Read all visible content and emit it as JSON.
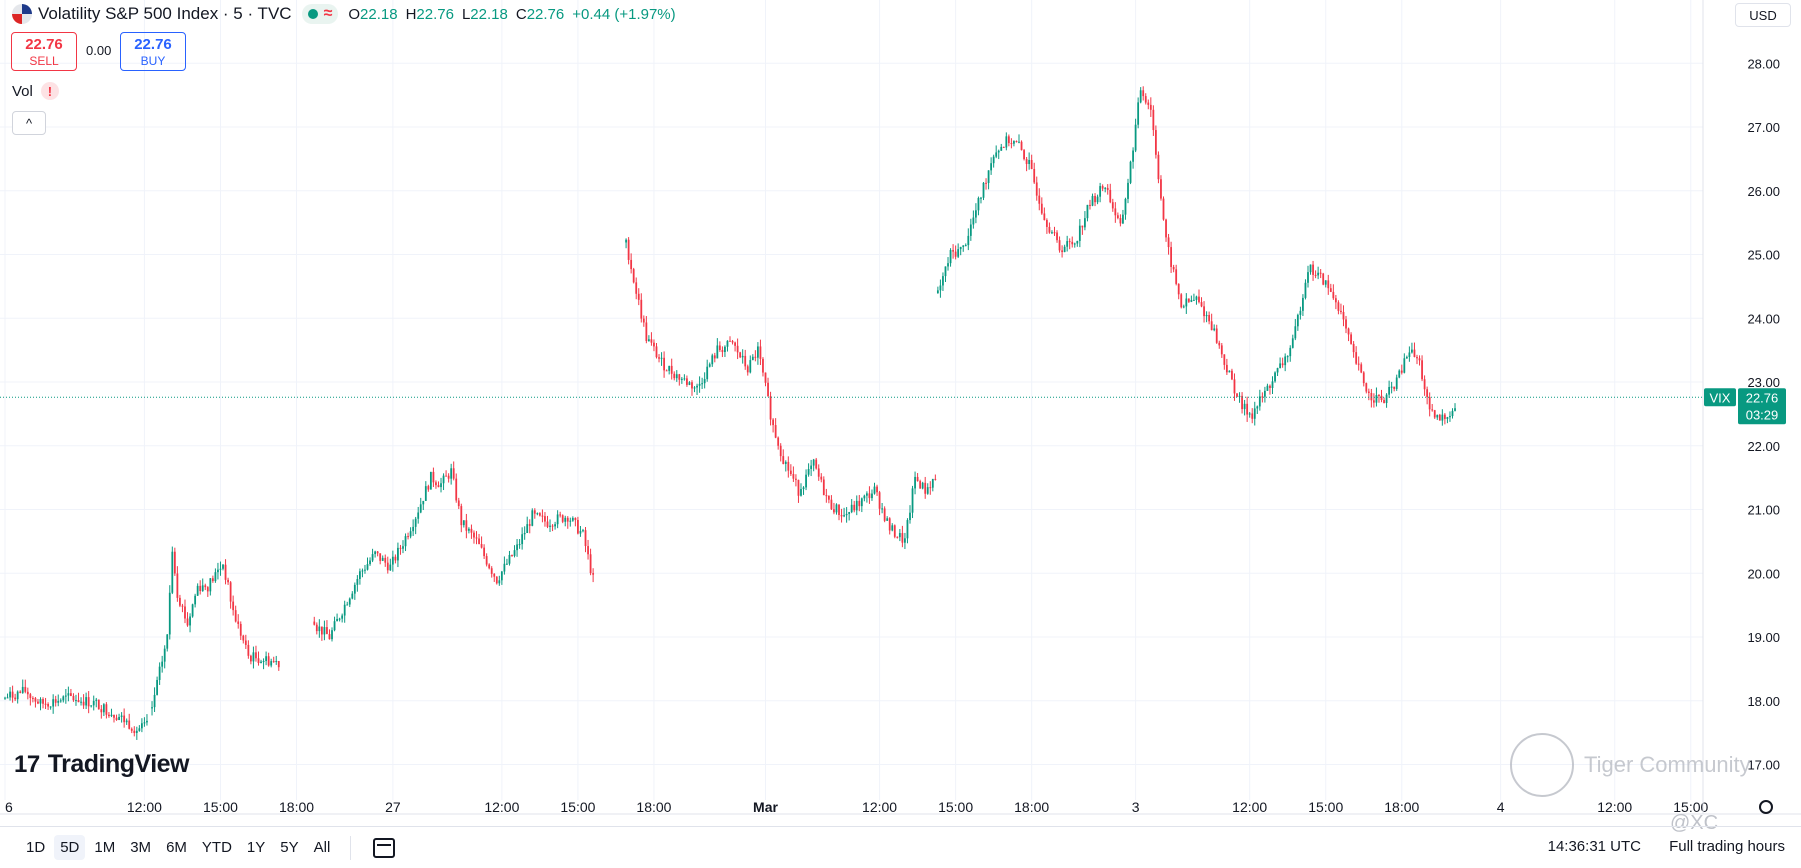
{
  "header": {
    "title": "Volatility S&P 500 Index · 5 · TVC",
    "ohlc": [
      {
        "label": "O",
        "value": "22.18"
      },
      {
        "label": "H",
        "value": "22.76"
      },
      {
        "label": "L",
        "value": "22.18"
      },
      {
        "label": "C",
        "value": "22.76"
      }
    ],
    "change": "+0.44 (+1.97%)",
    "currency": "USD"
  },
  "trade": {
    "sell_price": "22.76",
    "sell_label": "SELL",
    "spread": "0.00",
    "buy_price": "22.76",
    "buy_label": "BUY"
  },
  "indicators": {
    "vol_label": "Vol",
    "warn": "!",
    "collapse": "^"
  },
  "logo": {
    "text": "TradingView",
    "mark": "17"
  },
  "bottom": {
    "ranges": [
      "1D",
      "5D",
      "1M",
      "3M",
      "6M",
      "YTD",
      "1Y",
      "5Y",
      "All"
    ],
    "active_range": "5D",
    "time": "14:36:31 UTC",
    "session": "Full trading hours"
  },
  "watermark": {
    "text": "Tiger Community",
    "handle": "@XC"
  },
  "colors": {
    "up": "#089981",
    "down": "#f23645",
    "grid": "#f0f3fa",
    "text": "#131722"
  },
  "chart_data": {
    "type": "candlestick",
    "symbol": "VIX",
    "interval": "5",
    "ylim": [
      16.6,
      28.6
    ],
    "yticks": [
      "17.00",
      "18.00",
      "19.00",
      "20.00",
      "21.00",
      "22.00",
      "23.00",
      "24.00",
      "25.00",
      "26.00",
      "27.00",
      "28.00"
    ],
    "xticks": [
      "6",
      "12:00",
      "15:00",
      "18:00",
      "27",
      "12:00",
      "15:00",
      "18:00",
      "Mar",
      "12:00",
      "15:00",
      "18:00",
      "3",
      "12:00",
      "15:00",
      "18:00",
      "4",
      "12:00",
      "15:00"
    ],
    "x_tick_index": [
      0,
      55,
      85,
      115,
      153,
      196,
      226,
      256,
      300,
      345,
      375,
      405,
      446,
      491,
      521,
      551,
      590,
      635,
      665
    ],
    "last_price": {
      "symbol": "VIX",
      "price": "22.76",
      "countdown": "03:29",
      "value": 22.76
    },
    "sessions": [
      {
        "start": 0,
        "price_path": [
          [
            0,
            18.05
          ],
          [
            8,
            18.15
          ],
          [
            14,
            17.95
          ],
          [
            26,
            18.05
          ],
          [
            36,
            17.95
          ],
          [
            45,
            17.75
          ],
          [
            52,
            17.55
          ],
          [
            56,
            17.6
          ]
        ]
      },
      {
        "start": 58,
        "price_path": [
          [
            0,
            17.9
          ],
          [
            6,
            19.0
          ],
          [
            8,
            20.4
          ],
          [
            10,
            19.7
          ],
          [
            14,
            19.2
          ],
          [
            18,
            19.8
          ],
          [
            22,
            19.8
          ],
          [
            28,
            20.15
          ],
          [
            32,
            19.4
          ],
          [
            38,
            18.7
          ],
          [
            44,
            18.65
          ],
          [
            50,
            18.6
          ]
        ]
      },
      {
        "start": 122,
        "price_path": [
          [
            0,
            19.2
          ],
          [
            6,
            19.0
          ],
          [
            12,
            19.5
          ],
          [
            18,
            20.0
          ],
          [
            24,
            20.3
          ],
          [
            30,
            20.1
          ],
          [
            34,
            20.4
          ],
          [
            40,
            20.9
          ],
          [
            46,
            21.5
          ],
          [
            50,
            21.4
          ],
          [
            54,
            21.6
          ],
          [
            58,
            20.8
          ],
          [
            64,
            20.5
          ],
          [
            72,
            19.9
          ],
          [
            80,
            20.4
          ],
          [
            86,
            20.9
          ],
          [
            92,
            20.8
          ],
          [
            100,
            20.9
          ],
          [
            106,
            20.6
          ],
          [
            110,
            19.9
          ]
        ]
      },
      {
        "start": 245,
        "price_path": [
          [
            0,
            25.2
          ],
          [
            3,
            24.6
          ],
          [
            8,
            23.7
          ],
          [
            14,
            23.3
          ],
          [
            20,
            23.1
          ],
          [
            28,
            22.9
          ],
          [
            36,
            23.5
          ],
          [
            42,
            23.6
          ],
          [
            48,
            23.2
          ],
          [
            52,
            23.5
          ],
          [
            58,
            22.3
          ],
          [
            62,
            21.8
          ],
          [
            68,
            21.3
          ],
          [
            74,
            21.7
          ],
          [
            80,
            21.1
          ],
          [
            86,
            20.9
          ],
          [
            92,
            21.1
          ],
          [
            98,
            21.3
          ],
          [
            104,
            20.7
          ],
          [
            110,
            20.5
          ],
          [
            114,
            21.5
          ],
          [
            118,
            21.3
          ],
          [
            122,
            21.5
          ]
        ]
      },
      {
        "start": 368,
        "price_path": [
          [
            0,
            24.4
          ],
          [
            5,
            25.0
          ],
          [
            10,
            25.1
          ],
          [
            16,
            25.8
          ],
          [
            22,
            26.6
          ],
          [
            28,
            26.8
          ],
          [
            32,
            26.7
          ],
          [
            36,
            26.4
          ],
          [
            42,
            25.6
          ],
          [
            48,
            25.1
          ],
          [
            54,
            25.2
          ],
          [
            60,
            25.8
          ],
          [
            66,
            26.1
          ],
          [
            72,
            25.4
          ],
          [
            76,
            26.4
          ],
          [
            80,
            27.6
          ],
          [
            84,
            27.3
          ],
          [
            86,
            26.6
          ],
          [
            90,
            25.2
          ],
          [
            96,
            24.2
          ],
          [
            102,
            24.3
          ],
          [
            108,
            23.9
          ],
          [
            114,
            23.2
          ],
          [
            120,
            22.6
          ],
          [
            124,
            22.5
          ],
          [
            130,
            22.9
          ],
          [
            136,
            23.3
          ],
          [
            140,
            23.6
          ],
          [
            146,
            24.8
          ],
          [
            152,
            24.6
          ],
          [
            158,
            24.2
          ],
          [
            164,
            23.4
          ],
          [
            170,
            22.8
          ],
          [
            176,
            22.7
          ],
          [
            182,
            23.1
          ],
          [
            186,
            23.5
          ],
          [
            190,
            23.3
          ],
          [
            194,
            22.5
          ],
          [
            198,
            22.4
          ],
          [
            204,
            22.6
          ]
        ]
      }
    ]
  }
}
